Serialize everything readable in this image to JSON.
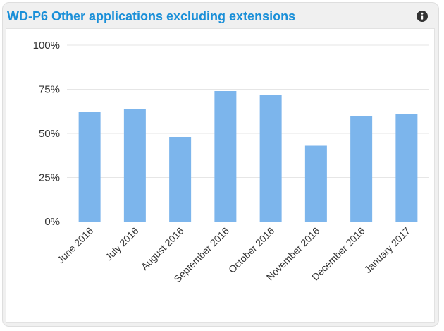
{
  "widget": {
    "title": "WD-P6 Other applications excluding extensions",
    "info_icon": "info-icon",
    "colors": {
      "title": "#1a8fd8",
      "bar": "#7cb5ec",
      "grid": "#e6e6e6",
      "axis": "#ccd6eb"
    }
  },
  "chart_data": {
    "type": "bar",
    "categories": [
      "June 2016",
      "July 2016",
      "August 2016",
      "September 2016",
      "October 2016",
      "November 2016",
      "December 2016",
      "January 2017"
    ],
    "series": [
      {
        "values": [
          62,
          64,
          48,
          74,
          72,
          43,
          60,
          61
        ]
      }
    ],
    "ylim": [
      0,
      100
    ],
    "y_ticks": [
      0,
      25,
      50,
      75,
      100
    ],
    "y_tick_labels": [
      "0%",
      "25%",
      "50%",
      "75%",
      "100%"
    ],
    "xlabel": "",
    "ylabel": "",
    "grid": true,
    "legend": "none"
  }
}
